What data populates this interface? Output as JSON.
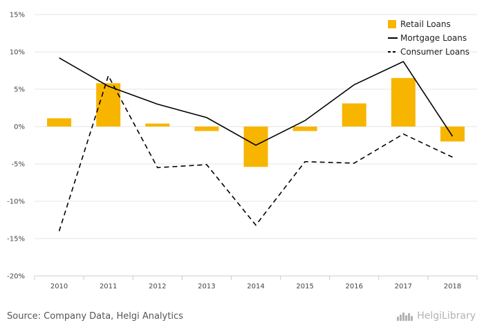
{
  "chart_data": {
    "type": "bar",
    "categories": [
      "2010",
      "2011",
      "2012",
      "2013",
      "2014",
      "2015",
      "2016",
      "2017",
      "2018"
    ],
    "ylim": [
      -20,
      15
    ],
    "yticks": [
      15,
      10,
      5,
      0,
      -5,
      -10,
      -15,
      -20
    ],
    "ytick_labels": [
      "15%",
      "10%",
      "5%",
      "0%",
      "-5%",
      "-10%",
      "-15%",
      "-20%"
    ],
    "grid": true,
    "legend_position": "top-right",
    "series": [
      {
        "name": "Retail Loans",
        "type": "bar",
        "color": "#F7B500",
        "values": [
          1.1,
          5.8,
          0.4,
          -0.6,
          -5.4,
          -0.6,
          3.1,
          6.5,
          -2.0
        ]
      },
      {
        "name": "Mortgage Loans",
        "type": "line",
        "style": "solid",
        "color": "#000000",
        "values": [
          9.2,
          5.4,
          3.0,
          1.2,
          -2.5,
          0.8,
          5.6,
          8.7,
          -1.3
        ]
      },
      {
        "name": "Consumer Loans",
        "type": "line",
        "style": "dashed",
        "color": "#000000",
        "values": [
          -14.0,
          6.8,
          -5.5,
          -5.1,
          -13.2,
          -4.7,
          -4.9,
          -1.0,
          -4.1
        ]
      }
    ]
  },
  "footer": {
    "source": "Source: Company Data, Helgi Analytics",
    "brand": "HelgiLibrary",
    "brand_icon": "helgi-logo-icon"
  }
}
